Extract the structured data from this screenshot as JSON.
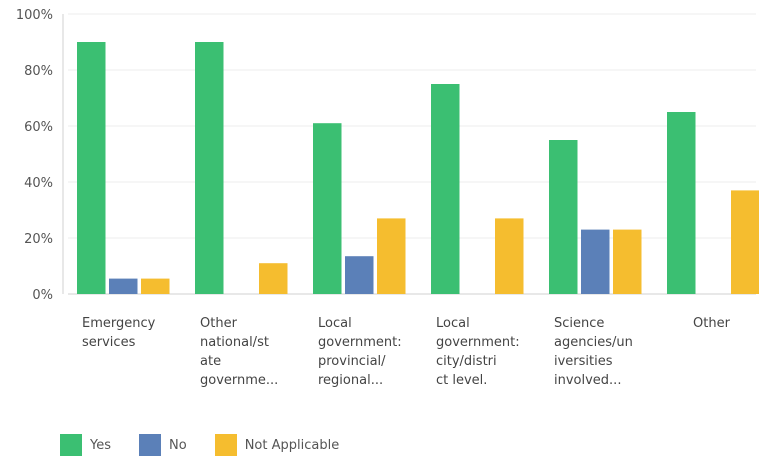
{
  "chart_data": {
    "type": "bar",
    "categories": [
      [
        "Emergency",
        "services"
      ],
      [
        "Other",
        "national/st",
        "ate",
        "governme..."
      ],
      [
        "Local",
        "government:",
        "provincial/",
        "regional..."
      ],
      [
        "Local",
        "government:",
        "city/distri",
        "ct level."
      ],
      [
        "Science",
        "agencies/un",
        "iversities",
        "involved..."
      ],
      [
        "Other"
      ]
    ],
    "series": [
      {
        "name": "Yes",
        "color": "#3bbf72",
        "values": [
          90,
          90,
          61,
          75,
          55,
          65
        ]
      },
      {
        "name": "No",
        "color": "#5b80b8",
        "values": [
          5.5,
          0,
          13.5,
          0,
          23,
          0
        ]
      },
      {
        "name": "Not Applicable",
        "color": "#f5bd2f",
        "values": [
          5.5,
          11,
          27,
          27,
          23,
          37
        ]
      }
    ],
    "yticks": [
      "0%",
      "20%",
      "40%",
      "60%",
      "80%",
      "100%"
    ],
    "ylim": [
      0,
      100
    ],
    "grid": true,
    "legend_position": "bottom-left"
  }
}
